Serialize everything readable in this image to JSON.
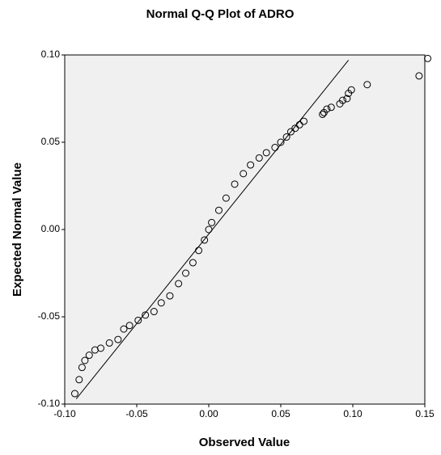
{
  "chart_data": {
    "type": "scatter",
    "title": "Normal Q-Q Plot of ADRO",
    "x_label": "Observed Value",
    "y_label": "Expected Normal Value",
    "xlim": [
      -0.1,
      0.15
    ],
    "ylim": [
      -0.1,
      0.1
    ],
    "xticks": [
      {
        "value": -0.1,
        "label": "-0.10"
      },
      -0.05,
      {
        "value": 0,
        "label": "0.00"
      },
      0.05,
      {
        "value": 0.1,
        "label": "0.10"
      },
      0.15
    ],
    "yticks": [
      {
        "value": -0.1,
        "label": "-0.10"
      },
      -0.05,
      {
        "value": 0,
        "label": "0.00"
      },
      0.05,
      {
        "value": 0.1,
        "label": "0.10"
      }
    ],
    "color": "#000000",
    "x": [
      0.152,
      0.146,
      0.11,
      0.099,
      0.097,
      0.096,
      0.093,
      0.091,
      0.085,
      0.082,
      0.08,
      0.079,
      0.066,
      0.063,
      0.06,
      0.057,
      0.054,
      0.05,
      0.046,
      0.04,
      0.035,
      0.029,
      0.024,
      0.018,
      0.012,
      0.007,
      0.002,
      0,
      -0.003,
      -0.007,
      -0.011,
      -0.016,
      -0.021,
      -0.027,
      -0.033,
      -0.038,
      -0.044,
      -0.049,
      -0.055,
      -0.059,
      -0.063,
      -0.069,
      -0.075,
      -0.079,
      -0.083,
      -0.086,
      -0.088,
      -0.09,
      -0.093
    ],
    "y": [
      0.098,
      0.088,
      0.083,
      0.08,
      0.078,
      0.075,
      0.074,
      0.072,
      0.07,
      0.069,
      0.067,
      0.066,
      0.062,
      0.06,
      0.058,
      0.056,
      0.053,
      0.05,
      0.047,
      0.044,
      0.041,
      0.037,
      0.032,
      0.026,
      0.018,
      0.011,
      0.004,
      0,
      -0.006,
      -0.012,
      -0.019,
      -0.025,
      -0.031,
      -0.038,
      -0.042,
      -0.047,
      -0.049,
      -0.052,
      -0.055,
      -0.057,
      -0.063,
      -0.065,
      -0.068,
      -0.069,
      -0.072,
      -0.075,
      -0.079,
      -0.086,
      -0.094
    ],
    "reference_line": {
      "x": [
        -0.092,
        0.097
      ],
      "y": [
        -0.097,
        0.097
      ]
    }
  }
}
